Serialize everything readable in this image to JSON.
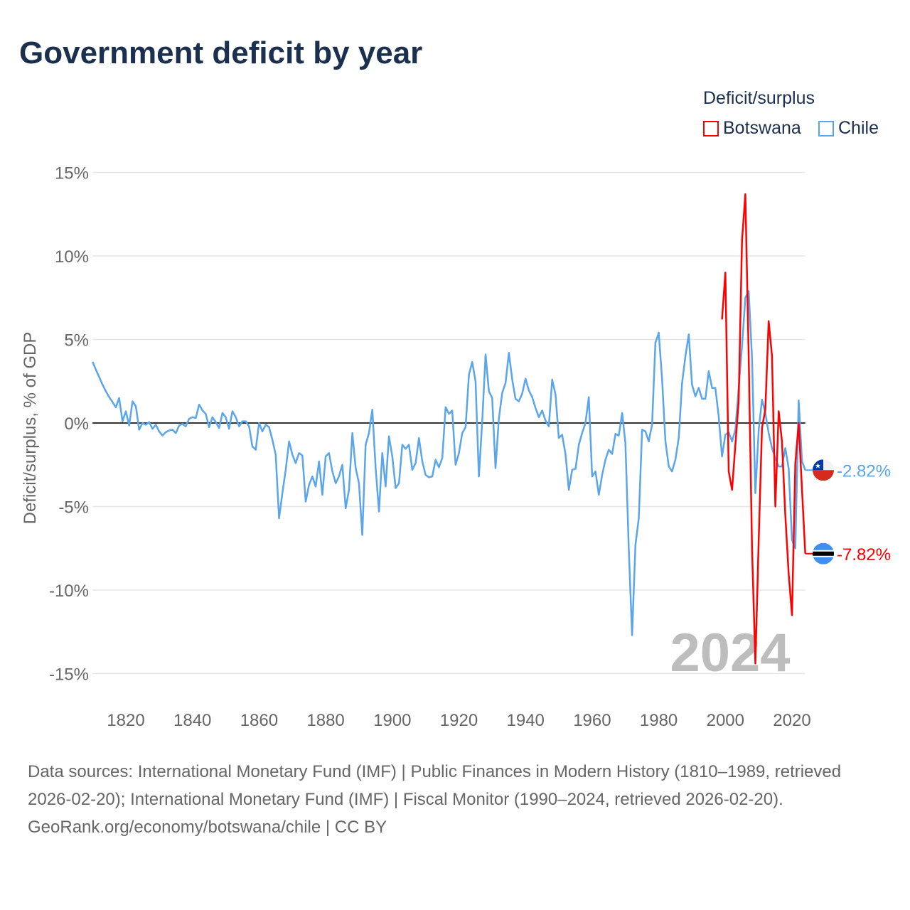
{
  "title": "Government deficit by year",
  "legend": {
    "title": "Deficit/surplus",
    "items": [
      {
        "name": "Botswana",
        "color": "#ff0000"
      },
      {
        "name": "Chile",
        "color": "#5aa5ec"
      }
    ]
  },
  "chart_data": {
    "type": "line",
    "title": "Government deficit by year",
    "xlabel": "",
    "ylabel": "Deficit/surplus, % of GDP",
    "xlim": [
      1810,
      2024
    ],
    "ylim": [
      -15,
      15
    ],
    "yticks": [
      15,
      10,
      5,
      0,
      -5,
      -10,
      -15
    ],
    "ytick_labels": [
      "15%",
      "10%",
      "5%",
      "0%",
      "-5%",
      "-10%",
      "-15%"
    ],
    "xticks": [
      1820,
      1840,
      1860,
      1880,
      1900,
      1920,
      1940,
      1960,
      1980,
      2000,
      2020
    ],
    "xtick_labels": [
      "1820",
      "1840",
      "1860",
      "1880",
      "1900",
      "1920",
      "1940",
      "1960",
      "1980",
      "2000",
      "2020"
    ],
    "grid": true,
    "year_watermark": "2024",
    "series": [
      {
        "name": "Chile",
        "color": "#5aa5ec",
        "start_year": 1810,
        "end_label": "-2.82%",
        "values": [
          3.66,
          3.2,
          2.75,
          2.3,
          1.9,
          1.55,
          1.25,
          0.94,
          1.5,
          0.1,
          0.7,
          -0.15,
          1.3,
          1.0,
          -0.4,
          0.0,
          -0.1,
          0.05,
          -0.35,
          -0.1,
          -0.5,
          -0.75,
          -0.55,
          -0.45,
          -0.4,
          -0.6,
          -0.15,
          -0.05,
          -0.2,
          0.25,
          0.35,
          0.3,
          1.1,
          0.75,
          0.55,
          -0.25,
          0.35,
          0.05,
          -0.3,
          0.6,
          0.35,
          -0.35,
          0.7,
          0.35,
          -0.2,
          0.1,
          0.1,
          -0.2,
          -1.4,
          -1.6,
          0.0,
          -0.5,
          -0.1,
          -0.25,
          -1.0,
          -1.9,
          -5.7,
          -4.2,
          -2.8,
          -1.1,
          -1.9,
          -2.4,
          -1.8,
          -1.95,
          -4.7,
          -3.7,
          -3.2,
          -3.8,
          -2.3,
          -4.3,
          -2.0,
          -1.8,
          -2.9,
          -3.6,
          -3.2,
          -2.5,
          -5.1,
          -4.0,
          -0.6,
          -2.7,
          -3.6,
          -6.7,
          -1.3,
          -0.6,
          0.8,
          -2.7,
          -5.3,
          -1.8,
          -3.8,
          -0.8,
          -2.0,
          -3.9,
          -3.6,
          -1.3,
          -1.55,
          -1.3,
          -2.8,
          -2.4,
          -0.9,
          -2.3,
          -3.1,
          -3.25,
          -3.2,
          -2.2,
          -2.65,
          -2.1,
          0.95,
          0.55,
          0.75,
          -2.5,
          -1.8,
          -0.6,
          -0.25,
          2.9,
          3.65,
          2.5,
          -3.2,
          0.1,
          4.1,
          1.9,
          1.5,
          -2.7,
          0.25,
          1.8,
          2.4,
          4.2,
          2.6,
          1.45,
          1.3,
          1.75,
          2.65,
          1.95,
          1.55,
          0.9,
          0.35,
          0.75,
          0.15,
          -0.2,
          2.6,
          1.7,
          -0.9,
          -0.7,
          -1.85,
          -4.0,
          -2.8,
          -2.75,
          -1.3,
          -0.6,
          0.0,
          1.55,
          -3.2,
          -2.9,
          -4.3,
          -3.1,
          -2.2,
          -1.6,
          -1.85,
          -0.65,
          -0.75,
          0.6,
          -1.2,
          -7.5,
          -12.7,
          -7.3,
          -5.7,
          -0.4,
          -0.5,
          -1.1,
          -0.1,
          4.8,
          5.4,
          2.6,
          -1.1,
          -2.6,
          -2.9,
          -2.2,
          -0.9,
          2.4,
          4.0,
          5.3,
          2.3,
          1.6,
          2.1,
          1.45,
          1.45,
          3.1,
          2.1,
          2.1,
          0.4,
          -2.0,
          -0.7,
          -0.55,
          -1.1,
          -0.4,
          2.1,
          4.6,
          7.5,
          7.9,
          3.9,
          -4.2,
          -0.4,
          1.4,
          0.6,
          -0.6,
          -1.5,
          -2.1,
          -2.6,
          -2.6,
          -1.5,
          -2.7,
          -7.0,
          -7.5,
          1.35,
          -2.3,
          -2.82
        ]
      },
      {
        "name": "Botswana",
        "color": "#ff0000",
        "start_year": 1999,
        "end_label": "-7.82%",
        "values": [
          6.2,
          9.0,
          -2.9,
          -4.0,
          -1.3,
          1.3,
          10.9,
          13.7,
          4.0,
          -7.5,
          -14.4,
          -7.0,
          -0.3,
          0.8,
          6.1,
          4.0,
          -5.0,
          0.7,
          -1.1,
          -5.5,
          -9.0,
          -11.5,
          -2.4,
          0.0,
          -4.0,
          -7.82
        ]
      }
    ]
  },
  "source": {
    "text": "Data sources: International Monetary Fund (IMF) | Public Finances in Modern History (1810–1989, retrieved 2026-02-20); International Monetary Fund (IMF) | Fiscal Monitor (1990–2024, retrieved 2026-02-20).",
    "credit": "GeoRank.org/economy/botswana/chile | CC BY"
  }
}
